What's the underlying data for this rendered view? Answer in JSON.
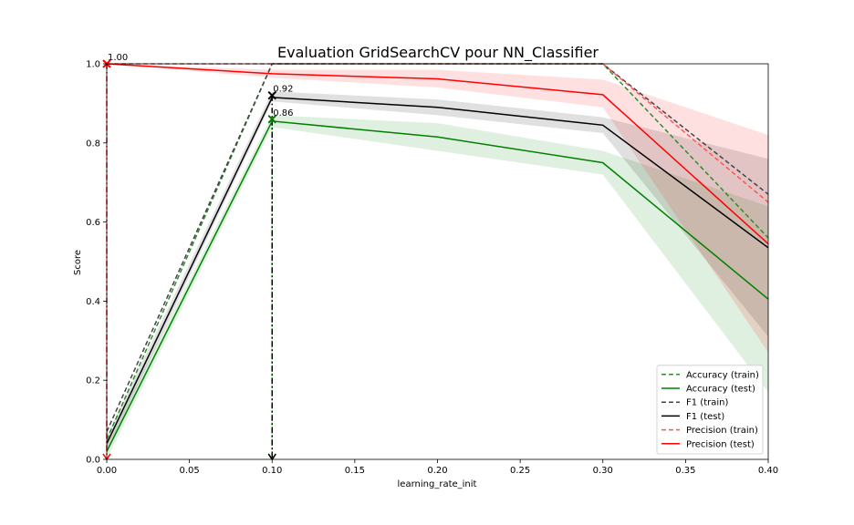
{
  "chart_data": {
    "type": "line",
    "title": "Evaluation GridSearchCV pour NN_Classifier",
    "xlabel": "learning_rate_init",
    "ylabel": "Score",
    "xlim": [
      0.0,
      0.4
    ],
    "ylim": [
      0.0,
      1.0
    ],
    "x_ticks": [
      "0.00",
      "0.05",
      "0.10",
      "0.15",
      "0.20",
      "0.25",
      "0.30",
      "0.35",
      "0.40"
    ],
    "y_ticks": [
      "0.0",
      "0.2",
      "0.4",
      "0.6",
      "0.8",
      "1.0"
    ],
    "grid": false,
    "legend_position": "lower-right",
    "x": [
      0.0,
      0.1,
      0.2,
      0.3,
      0.4
    ],
    "series": [
      {
        "name": "Accuracy (train)",
        "color": "#2e8b2e",
        "dash": true,
        "values": [
          0.05,
          1.0,
          1.0,
          1.0,
          0.56
        ],
        "band": null
      },
      {
        "name": "Accuracy (test)",
        "color": "#008000",
        "dash": false,
        "values": [
          0.02,
          0.855,
          0.815,
          0.75,
          0.405
        ],
        "band": {
          "low": [
            0.0,
            0.84,
            0.78,
            0.72,
            0.17
          ],
          "high": [
            0.04,
            0.87,
            0.85,
            0.78,
            0.64
          ]
        }
      },
      {
        "name": "F1 (train)",
        "color": "#444444",
        "dash": true,
        "values": [
          0.07,
          1.0,
          1.0,
          1.0,
          0.67
        ],
        "band": null
      },
      {
        "name": "F1 (test)",
        "color": "#000000",
        "dash": false,
        "values": [
          0.04,
          0.915,
          0.89,
          0.845,
          0.535
        ],
        "band": {
          "low": [
            0.02,
            0.905,
            0.87,
            0.825,
            0.31
          ],
          "high": [
            0.06,
            0.93,
            0.91,
            0.865,
            0.76
          ]
        }
      },
      {
        "name": "Precision (train)",
        "color": "#ff5555",
        "dash": true,
        "values": [
          1.0,
          1.0,
          1.0,
          1.0,
          0.65
        ],
        "band": null
      },
      {
        "name": "Precision (test)",
        "color": "#ff0000",
        "dash": false,
        "values": [
          1.0,
          0.975,
          0.962,
          0.922,
          0.545
        ],
        "band": {
          "low": [
            1.0,
            0.965,
            0.94,
            0.89,
            0.27
          ],
          "high": [
            1.0,
            0.985,
            0.985,
            0.96,
            0.82
          ]
        }
      }
    ],
    "best_markers": [
      {
        "series": "Accuracy (test)",
        "x": 0.1,
        "y": 0.86,
        "label": "0.86",
        "color": "#008000"
      },
      {
        "series": "F1 (test)",
        "x": 0.1,
        "y": 0.92,
        "label": "0.92",
        "color": "#000000"
      },
      {
        "series": "Precision (test)",
        "x": 0.0,
        "y": 1.0,
        "label": "1.00",
        "color": "#ff0000"
      }
    ]
  }
}
